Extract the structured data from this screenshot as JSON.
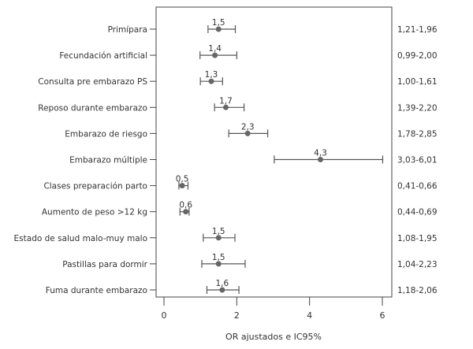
{
  "chart_data": {
    "type": "forest",
    "xlabel": "OR ajustados e IC95%",
    "xlim": [
      0,
      6
    ],
    "xticks": [
      0,
      2,
      4,
      6
    ],
    "grid": false,
    "marker_color": "#666666",
    "rows": [
      {
        "label": "Primípara",
        "or": 1.5,
        "or_label": "1,5",
        "lo": 1.21,
        "hi": 1.96,
        "ci_label": "1,21-1,96"
      },
      {
        "label": "Fecundación artificial",
        "or": 1.4,
        "or_label": "1,4",
        "lo": 0.99,
        "hi": 2.0,
        "ci_label": "0,99-2,00"
      },
      {
        "label": "Consulta pre embarazo PS",
        "or": 1.3,
        "or_label": "1,3",
        "lo": 1.0,
        "hi": 1.61,
        "ci_label": "1,00-1,61"
      },
      {
        "label": "Reposo durante embarazo",
        "or": 1.7,
        "or_label": "1,7",
        "lo": 1.39,
        "hi": 2.2,
        "ci_label": "1,39-2,20"
      },
      {
        "label": "Embarazo de riesgo",
        "or": 2.3,
        "or_label": "2,3",
        "lo": 1.78,
        "hi": 2.85,
        "ci_label": "1,78-2,85"
      },
      {
        "label": "Embarazo múltiple",
        "or": 4.3,
        "or_label": "4,3",
        "lo": 3.03,
        "hi": 6.01,
        "ci_label": "3,03-6,01"
      },
      {
        "label": "Clases preparación parto",
        "or": 0.5,
        "or_label": "0,5",
        "lo": 0.41,
        "hi": 0.66,
        "ci_label": "0,41-0,66"
      },
      {
        "label": "Aumento de peso >12 kg",
        "or": 0.6,
        "or_label": "0,6",
        "lo": 0.44,
        "hi": 0.69,
        "ci_label": "0,44-0,69"
      },
      {
        "label": "Estado de salud malo-muy malo",
        "or": 1.5,
        "or_label": "1,5",
        "lo": 1.08,
        "hi": 1.95,
        "ci_label": "1,08-1,95"
      },
      {
        "label": "Pastillas para dormir",
        "or": 1.5,
        "or_label": "1,5",
        "lo": 1.04,
        "hi": 2.23,
        "ci_label": "1,04-2,23"
      },
      {
        "label": "Fuma durante embarazo",
        "or": 1.6,
        "or_label": "1,6",
        "lo": 1.18,
        "hi": 2.06,
        "ci_label": "1,18-2,06"
      }
    ]
  }
}
